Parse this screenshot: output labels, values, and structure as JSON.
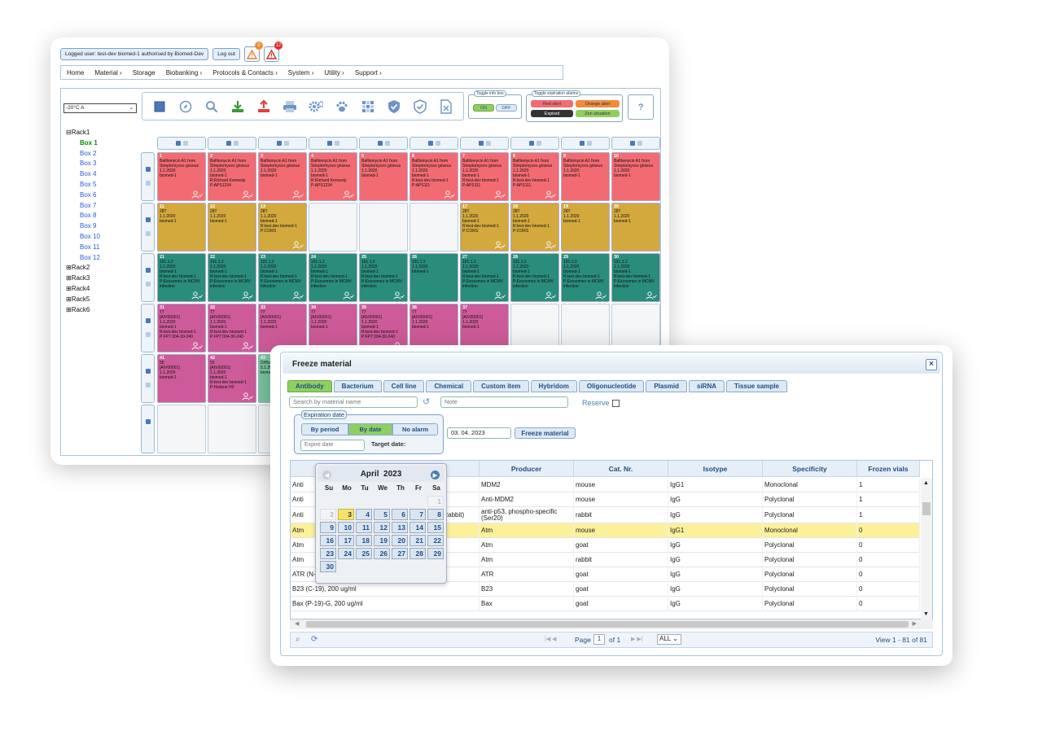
{
  "header": {
    "logged_user": "Logged user: test-dev biomed-1 authorised by Biomed-Dev",
    "logout": "Log out",
    "alarm_orange_count": "2",
    "alarm_red_count": "12"
  },
  "menu": [
    "Home",
    "Material",
    "Storage",
    "Biobanking",
    "Protocols & Contacts",
    "System",
    "Utility",
    "Support"
  ],
  "storage_select": "-20°C A",
  "toggle_info": {
    "legend": "Toggle info box",
    "on": "ON",
    "off": "OFF"
  },
  "toggle_alarms": {
    "legend": "Toggle expiration alarms",
    "red": "Red alert",
    "orange": "Orange alert",
    "expired": "Expired",
    "zen": "Zen situation"
  },
  "help": "?",
  "tree": {
    "rack1": "Rack1",
    "boxes": [
      "Box 1",
      "Box 2",
      "Box 3",
      "Box 4",
      "Box 5",
      "Box 6",
      "Box 7",
      "Box 8",
      "Box 9",
      "Box 10",
      "Box 11",
      "Box 12"
    ],
    "racks": [
      "Rack2",
      "Rack3",
      "Rack4",
      "Rack5",
      "Rack6"
    ],
    "expand_minus": "⊟",
    "expand_plus": "⊞"
  },
  "grid": {
    "cells": [
      {
        "n": "1",
        "c": "red",
        "t": [
          "Bafilomycin A1 from",
          "Streptomyces griseus",
          "1.1.2020",
          "biomed-1"
        ],
        "u": true
      },
      {
        "n": "2",
        "c": "red",
        "t": [
          "Bafilomycin A1 from",
          "Streptomyces griseus",
          "1.1.2020",
          "biomed-1",
          "R:Richard Kennedy",
          "P:APS1234"
        ],
        "u": true
      },
      {
        "n": "3",
        "c": "red",
        "t": [
          "Bafilomycin A1 from",
          "Streptomyces griseus",
          "1.1.2020",
          "biomed-1"
        ],
        "u": true
      },
      {
        "n": "4",
        "c": "red",
        "t": [
          "Bafilomycin A1 from",
          "Streptomyces griseus",
          "1.1.2020",
          "biomed-1",
          "R:Richard Kennedy",
          "P:APS1234"
        ],
        "u": true
      },
      {
        "n": "5",
        "c": "red",
        "t": [
          "Bafilomycin A1 from",
          "Streptomyces griseus",
          "1.1.2020",
          "biomed-1"
        ],
        "u": false
      },
      {
        "n": "6",
        "c": "red",
        "t": [
          "Bafilomycin A1 from",
          "Streptomyces griseus",
          "1.1.2020",
          "biomed-1",
          "R:test-dev biomed-1",
          "P:APS111"
        ],
        "u": true
      },
      {
        "n": "7",
        "c": "red",
        "t": [
          "Bafilomycin A1 from",
          "Streptomyces griseus",
          "1.1.2020",
          "biomed-1",
          "R:test-dev biomed-1",
          "P:APS111"
        ],
        "u": true
      },
      {
        "n": "8",
        "c": "red",
        "t": [
          "Bafilomycin A1 from",
          "Streptomyces griseus",
          "1.1.2020",
          "biomed-1",
          "R:test-dev biomed-1",
          "P:APS111"
        ],
        "u": true
      },
      {
        "n": "9",
        "c": "red",
        "t": [
          "Bafilomycin A1 from",
          "Streptomyces griseus",
          "1.1.2020",
          "biomed-1"
        ],
        "u": false
      },
      {
        "n": "10",
        "c": "red",
        "t": [
          "Bafilomycin A1 from",
          "Streptomyces griseus",
          "1.1.2020",
          "biomed-1"
        ],
        "u": false
      },
      {
        "n": "11",
        "c": "yel",
        "t": [
          "28T",
          "1.1.2020",
          "biomed-1"
        ],
        "u": false
      },
      {
        "n": "12",
        "c": "yel",
        "t": [
          "28T",
          "1.1.2020",
          "biomed-1"
        ],
        "u": false
      },
      {
        "n": "13",
        "c": "yel",
        "t": [
          "28T",
          "1.1.2020",
          "biomed-1",
          "R:test-dev biomed-1",
          "P:CORS"
        ],
        "u": true
      },
      {
        "n": "",
        "c": "empty",
        "t": [],
        "u": false
      },
      {
        "n": "",
        "c": "empty",
        "t": [],
        "u": false
      },
      {
        "n": "",
        "c": "empty",
        "t": [],
        "u": false
      },
      {
        "n": "17",
        "c": "yel",
        "t": [
          "28T",
          "1.1.2020",
          "biomed-1",
          "R:test-dev biomed-1",
          "P:CORS"
        ],
        "u": true
      },
      {
        "n": "18",
        "c": "yel",
        "t": [
          "28T",
          "1.1.2020",
          "biomed-1",
          "R:test-dev biomed-1",
          "P:CORS"
        ],
        "u": true
      },
      {
        "n": "19",
        "c": "yel",
        "t": [
          "28T",
          "1.1.2020",
          "biomed-1"
        ],
        "u": false
      },
      {
        "n": "20",
        "c": "yel",
        "t": [
          "28T",
          "1.1.2020",
          "biomed-1"
        ],
        "u": false
      },
      {
        "n": "21",
        "c": "teal",
        "t": [
          "191.1.2",
          "1.1.2020",
          "biomed-1",
          "R:test-dev biomed-1",
          "P:Exosomes in MCMV",
          "infection"
        ],
        "u": true
      },
      {
        "n": "22",
        "c": "teal",
        "t": [
          "191.1.2",
          "1.1.2020",
          "biomed-1",
          "R:test-dev biomed-1",
          "P:Exosomes in MCMV",
          "infection"
        ],
        "u": true
      },
      {
        "n": "23",
        "c": "teal",
        "t": [
          "191.1.2",
          "1.1.2020",
          "biomed-1",
          "R:test-dev biomed-1",
          "P:Exosomes in MCMV",
          "infection"
        ],
        "u": true
      },
      {
        "n": "24",
        "c": "teal",
        "t": [
          "191.1.2",
          "1.1.2020",
          "biomed-1",
          "R:test-dev biomed-1",
          "P:Exosomes in MCMV",
          "infection"
        ],
        "u": true
      },
      {
        "n": "25",
        "c": "teal",
        "t": [
          "191.1.2",
          "1.1.2020",
          "biomed-1",
          "R:test-dev biomed-1",
          "P:Exosomes in MCMV",
          "infection"
        ],
        "u": true
      },
      {
        "n": "26",
        "c": "teal",
        "t": [
          "191.1.2",
          "1.1.2020",
          "biomed-1"
        ],
        "u": false
      },
      {
        "n": "27",
        "c": "teal",
        "t": [
          "191.1.2",
          "1.1.2020",
          "biomed-1",
          "R:test-dev biomed-1",
          "P:Exosomes in MCMV",
          "infection"
        ],
        "u": true
      },
      {
        "n": "28",
        "c": "teal",
        "t": [
          "191.1.2",
          "1.1.2020",
          "biomed-1",
          "R:test-dev biomed-1",
          "P:Exosomes in MCMV",
          "infection"
        ],
        "u": true
      },
      {
        "n": "29",
        "c": "teal",
        "t": [
          "191.1.2",
          "1.1.2020",
          "biomed-1",
          "R:test-dev biomed-1",
          "P:Exosomes in MCMV",
          "infection"
        ],
        "u": true
      },
      {
        "n": "30",
        "c": "teal",
        "t": [
          "191.1.2",
          "1.1.2020",
          "biomed-1",
          "R:test-dev biomed-1",
          "P:Exosomes in MCMV",
          "infection"
        ],
        "u": true
      },
      {
        "n": "31",
        "c": "pink",
        "t": [
          "77",
          "[AIV00001]",
          "1.1.2020",
          "biomed-1",
          "R:test-dev biomed-1",
          "P:FP7 004-30-240"
        ],
        "u": true
      },
      {
        "n": "32",
        "c": "pink",
        "t": [
          "77",
          "[AIV00001]",
          "1.1.2020",
          "biomed-1",
          "R:test-dev biomed-1",
          "P:FP7 004-30-240"
        ],
        "u": true
      },
      {
        "n": "33",
        "c": "pink",
        "t": [
          "77",
          "[AIV00001]",
          "1.1.2020",
          "biomed-1"
        ],
        "u": false
      },
      {
        "n": "34",
        "c": "pink",
        "t": [
          "77",
          "[AIV00001]",
          "1.1.2020",
          "biomed-1"
        ],
        "u": false
      },
      {
        "n": "35",
        "c": "pink",
        "t": [
          "77",
          "[AIV00001]",
          "1.1.2020",
          "biomed-1",
          "R:test-dev biomed-1",
          "P:FP7 004-30-240"
        ],
        "u": true
      },
      {
        "n": "36",
        "c": "pink",
        "t": [
          "77",
          "[AIV00001]",
          "1.1.2020",
          "biomed-1"
        ],
        "u": false
      },
      {
        "n": "37",
        "c": "pink",
        "t": [
          "77",
          "[AIV00001]",
          "1.1.2020",
          "biomed-1"
        ],
        "u": false
      },
      {
        "n": "",
        "c": "empty",
        "t": [],
        "u": false
      },
      {
        "n": "",
        "c": "empty",
        "t": [],
        "u": false
      },
      {
        "n": "",
        "c": "empty",
        "t": [],
        "u": false
      },
      {
        "n": "41",
        "c": "pink",
        "t": [
          "55",
          "[AIV00001]",
          "1.1.2020",
          "biomed-1"
        ],
        "u": false
      },
      {
        "n": "42",
        "c": "pink",
        "t": [
          "55",
          "[AIV00001]",
          "1.1.2020",
          "biomed-1",
          "R:test-dev biomed-1",
          "P:Histone H3"
        ],
        "u": true
      },
      {
        "n": "43",
        "c": "green",
        "t": [
          "DH5a",
          "5.1.20",
          "biome"
        ],
        "u": false
      }
    ]
  },
  "dialog": {
    "title": "Freeze material",
    "close": "×",
    "tabs": [
      "Antibody",
      "Bacterium",
      "Cell line",
      "Chemical",
      "Custom item",
      "Hybridom",
      "Oligonucleotide",
      "Plasmid",
      "siRNA",
      "Tissue sample"
    ],
    "search_placeholder": "Search by material name",
    "note_placeholder": "Note",
    "reserve": "Reserve",
    "exp_legend": "Expiration date",
    "exp_buttons": [
      "By period",
      "By date",
      "No alarm"
    ],
    "expire_placeholder": "Expire date",
    "target_date_label": "Target date:",
    "target_date_value": "03. 04. 2023",
    "freeze_button": "Freeze material",
    "columns": [
      "Producer",
      "Cat. Nr.",
      "Isotype",
      "Specificity",
      "Frozen vials"
    ],
    "rows": [
      {
        "name": "Anti",
        "producer": "MDM2",
        "cat": "mouse",
        "iso": "IgG1",
        "spec": "Monoclonal",
        "vials": "1"
      },
      {
        "name": "Anti",
        "producer": "Anti-MDM2",
        "cat": "mouse",
        "iso": "IgG",
        "spec": "Polyclonal",
        "vials": "1"
      },
      {
        "name": "Anti",
        "name_tail": "n (Rabbit)",
        "producer": "anti-p53, phospho-specific (Ser20)",
        "cat": "rabbit",
        "iso": "IgG",
        "spec": "Polyclonal",
        "vials": "1"
      },
      {
        "name": "Atm",
        "producer": "Atm",
        "cat": "mouse",
        "iso": "IgG1",
        "spec": "Monoclonal",
        "vials": "0"
      },
      {
        "name": "Atm",
        "producer": "Atm",
        "cat": "goat",
        "iso": "IgG",
        "spec": "Polyclonal",
        "vials": "0"
      },
      {
        "name": "Atm",
        "producer": "Atm",
        "cat": "rabbit",
        "iso": "IgG",
        "spec": "Polyclonal",
        "vials": "0"
      },
      {
        "name": "ATR (N-19), 200 ug/ml",
        "producer": "ATR",
        "cat": "goat",
        "iso": "IgG",
        "spec": "Polyclonal",
        "vials": "0"
      },
      {
        "name": "B23 (C-19), 200 ug/ml",
        "producer": "B23",
        "cat": "goat",
        "iso": "IgG",
        "spec": "Polyclonal",
        "vials": "0"
      },
      {
        "name": "Bax (P-19)-G, 200 ug/ml",
        "producer": "Bax",
        "cat": "goat",
        "iso": "IgG",
        "spec": "Polyclonal",
        "vials": "0"
      }
    ],
    "highlight_row": 3,
    "pager": {
      "page_label": "Page",
      "page": "1",
      "of": "of 1",
      "per_page": "ALL",
      "view": "View 1 - 81 of 81"
    }
  },
  "calendar": {
    "month": "April",
    "year": "2023",
    "dow": [
      "Su",
      "Mo",
      "Tu",
      "We",
      "Th",
      "Fr",
      "Sa"
    ],
    "days": [
      "",
      "",
      "",
      "",
      "",
      "",
      "1",
      "2",
      "3",
      "4",
      "5",
      "6",
      "7",
      "8",
      "9",
      "10",
      "11",
      "12",
      "13",
      "14",
      "15",
      "16",
      "17",
      "18",
      "19",
      "20",
      "21",
      "22",
      "23",
      "24",
      "25",
      "26",
      "27",
      "28",
      "29",
      "30"
    ],
    "today": "3",
    "disabled_until": "2"
  },
  "colors": {
    "red_cell": "#f36b72",
    "yellow_cell": "#d3a93e",
    "teal_cell": "#2a8d7c",
    "pink_cell": "#ce5b99",
    "active_tab": "#8fcf60",
    "link": "#2a5bd1"
  }
}
